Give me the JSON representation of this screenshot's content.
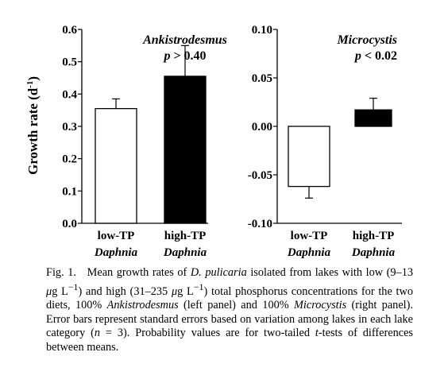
{
  "chart_data": [
    {
      "type": "bar",
      "panel": "left",
      "title": "Ankistrodesmus",
      "annotation_p": "p",
      "annotation_op": "> 0.40",
      "ylabel": "Growth rate (d",
      "ylabel_sup": "-1",
      "ylabel_close": ")",
      "ylim": [
        0.0,
        0.6
      ],
      "yticks": [
        "0.0",
        "0.1",
        "0.2",
        "0.3",
        "0.4",
        "0.5",
        "0.6"
      ],
      "ytick_values": [
        0.0,
        0.1,
        0.2,
        0.3,
        0.4,
        0.5,
        0.6
      ],
      "categories": [
        {
          "line1": "low-TP",
          "line2": "Daphnia",
          "value": 0.355,
          "error": 0.03,
          "fill": "#ffffff"
        },
        {
          "line1": "high-TP",
          "line2": "Daphnia",
          "value": 0.455,
          "error": 0.095,
          "fill": "#000000"
        }
      ]
    },
    {
      "type": "bar",
      "panel": "right",
      "title": "Microcystis",
      "annotation_p": "p",
      "annotation_op": "< 0.02",
      "ylim": [
        -0.1,
        0.1
      ],
      "yticks": [
        "0.10",
        "0.05",
        "0.00",
        "-0.05",
        "-0.10"
      ],
      "ytick_values": [
        0.1,
        0.05,
        0.0,
        -0.05,
        -0.1
      ],
      "categories": [
        {
          "line1": "low-TP",
          "line2": "Daphnia",
          "value": -0.062,
          "error": 0.012,
          "fill": "#ffffff"
        },
        {
          "line1": "high-TP",
          "line2": "Daphnia",
          "value": 0.017,
          "error": 0.012,
          "fill": "#000000"
        }
      ]
    }
  ],
  "caption": {
    "fig": "Fig. 1.",
    "t1": "Mean growth rates of ",
    "species": "D. pulicaria",
    "t2": " isolated from lakes with low (9–13 ",
    "mu1": "μ",
    "t3": "g L",
    "sup1": "−1",
    "t4": ") and high (31–235 ",
    "mu2": "μ",
    "t5": "g L",
    "sup2": "−1",
    "t6": ") total phosphorus concentrations for the two diets, 100% ",
    "ank": "Ankistrodesmus",
    "t7": " (left panel) and 100% ",
    "mic": "Microcystis",
    "t8": " (right panel). Error bars represent standard errors based on variation among lakes in each lake category (",
    "n": "n",
    "t9": " = 3). Probability values are for two-tailed ",
    "tt": "t",
    "t10": "-tests of differences between means."
  }
}
